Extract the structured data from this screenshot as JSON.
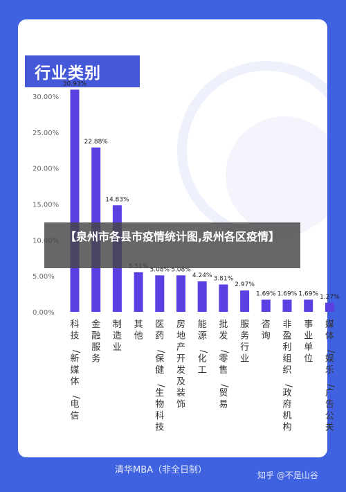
{
  "title": "行业类别",
  "overlay_text": "【泉州市各县市疫情统计图,泉州各区疫情】",
  "footer_left": "清华MBA（非全日制）",
  "footer_right": "知乎 @不是山谷",
  "colors": {
    "background": "#3f63e0",
    "bar": "#5b3fe3",
    "title_box": "#4558d8"
  },
  "chart_data": {
    "type": "bar",
    "title": "行业类别",
    "categories": [
      "科技/新媒体/电信",
      "金融服务",
      "制造业",
      "其他",
      "医药/保健/生物科技",
      "房地产开发及装饰",
      "能源/化工",
      "批发/零售/贸易",
      "服务行业",
      "咨询",
      "非盈利组织/政府机构",
      "事业单位",
      "媒体/娱乐/广告公关"
    ],
    "values": [
      30.93,
      22.88,
      14.83,
      5.51,
      5.08,
      5.08,
      4.24,
      3.81,
      2.97,
      1.69,
      1.69,
      1.69,
      1.27
    ],
    "value_labels": [
      "30.93%",
      "22.88%",
      "14.83%",
      "5.51%",
      "5.08%",
      "5.08%",
      "4.24%",
      "3.81%",
      "2.97%",
      "1.69%",
      "1.69%",
      "1.69%",
      "1.27%"
    ],
    "yticks": [
      "0.00%",
      "5.00%",
      "10.00%",
      "15.00%",
      "20.00%",
      "25.00%",
      "30.00%"
    ],
    "ylim": [
      0,
      30
    ],
    "grid": false,
    "xlabel": "",
    "ylabel": ""
  }
}
